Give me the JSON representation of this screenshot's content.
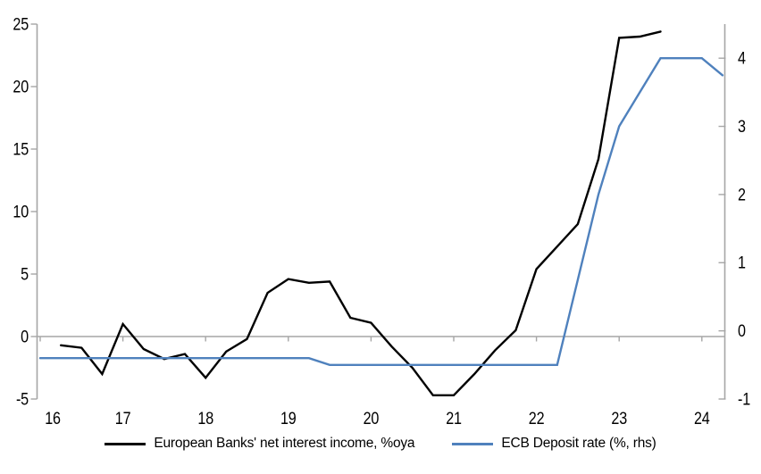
{
  "chart_data": {
    "type": "line",
    "title": "",
    "x_axis": {
      "ticks": [
        16,
        17,
        18,
        19,
        20,
        21,
        22,
        23,
        24
      ],
      "tick_labels": [
        "16",
        "17",
        "18",
        "19",
        "20",
        "21",
        "22",
        "23",
        "24"
      ],
      "range": [
        16,
        24.3
      ]
    },
    "left_axis": {
      "ticks": [
        -5,
        0,
        5,
        10,
        15,
        20,
        25
      ],
      "range": [
        -5,
        25
      ]
    },
    "right_axis": {
      "ticks": [
        -1,
        0,
        1,
        2,
        3,
        4
      ],
      "range": [
        -1,
        4.5
      ]
    },
    "zero_gridline": true,
    "grid": "zero line only",
    "legend_position": "bottom",
    "series": [
      {
        "name": "European Banks' net interest income, %oya",
        "axis": "left",
        "color": "#000000",
        "x": [
          16.25,
          16.5,
          16.75,
          17,
          17.25,
          17.5,
          17.75,
          18,
          18.25,
          18.5,
          18.75,
          19,
          19.25,
          19.5,
          19.75,
          20,
          20.25,
          20.5,
          20.75,
          21,
          21.25,
          21.5,
          21.75,
          22,
          22.25,
          22.5,
          22.75,
          23,
          23.25,
          23.5
        ],
        "values": [
          -0.7,
          -0.9,
          -3.0,
          1.0,
          -1.0,
          -1.8,
          -1.4,
          -3.3,
          -1.2,
          -0.2,
          3.5,
          4.6,
          4.3,
          4.4,
          1.5,
          1.1,
          -0.8,
          -2.5,
          -4.7,
          -4.7,
          -3.0,
          -1.1,
          0.5,
          5.4,
          7.2,
          9.0,
          14.2,
          23.9,
          24.0,
          24.4
        ]
      },
      {
        "name": "ECB Deposit rate (%, rhs)",
        "axis": "right",
        "color": "#4f81bd",
        "x": [
          16,
          16.25,
          16.5,
          16.75,
          17,
          17.25,
          17.5,
          17.75,
          18,
          18.25,
          18.5,
          18.75,
          19,
          19.25,
          19.5,
          19.75,
          20,
          20.25,
          20.5,
          20.75,
          21,
          21.25,
          21.5,
          21.75,
          22,
          22.25,
          22.5,
          22.75,
          23,
          23.25,
          23.5,
          23.75,
          24,
          24.25
        ],
        "values": [
          -0.4,
          -0.4,
          -0.4,
          -0.4,
          -0.4,
          -0.4,
          -0.4,
          -0.4,
          -0.4,
          -0.4,
          -0.4,
          -0.4,
          -0.4,
          -0.4,
          -0.5,
          -0.5,
          -0.5,
          -0.5,
          -0.5,
          -0.5,
          -0.5,
          -0.5,
          -0.5,
          -0.5,
          -0.5,
          -0.5,
          0.75,
          2.0,
          3.0,
          3.5,
          4.0,
          4.0,
          4.0,
          3.75
        ]
      }
    ]
  },
  "colors": {
    "axis": "#a6a6a6",
    "background": "#ffffff",
    "series_black": "#000000",
    "series_blue": "#4f81bd"
  }
}
